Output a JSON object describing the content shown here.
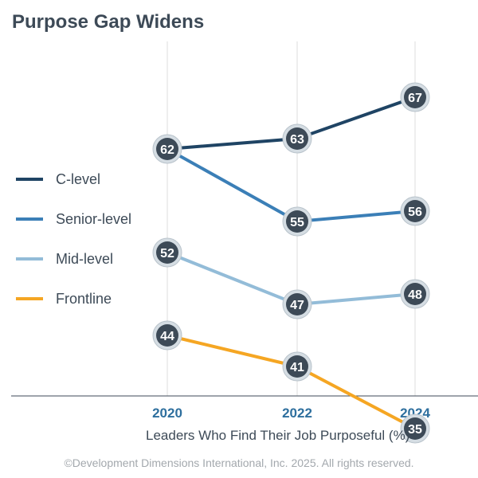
{
  "title": "Purpose Gap Widens",
  "copyright": "©Development Dimensions International, Inc. 2025. All rights reserved.",
  "colors": {
    "marker_fill": "#3d4a57",
    "marker_ring": "#d5dde3",
    "gridline": "#dddddd",
    "axis": "#3d4a57",
    "tick_label": "#2e6f9e"
  },
  "chart_data": {
    "type": "line",
    "title": "Purpose Gap Widens",
    "xlabel": "Leaders Who Find Their Job Purposeful (%)",
    "ylabel": "",
    "x": [
      "2020",
      "2022",
      "2024"
    ],
    "ylim": [
      20,
      80
    ],
    "grid": "vertical",
    "legend": "left",
    "series": [
      {
        "name": "C-level",
        "values": [
          62,
          63,
          67
        ],
        "color": "#1f4464"
      },
      {
        "name": "Senior-level",
        "values": [
          62,
          55,
          56
        ],
        "color": "#3b7fb7"
      },
      {
        "name": "Mid-level",
        "values": [
          52,
          47,
          48
        ],
        "color": "#93bcd8"
      },
      {
        "name": "Frontline",
        "values": [
          44,
          41,
          35
        ],
        "color": "#f5a623"
      }
    ]
  }
}
